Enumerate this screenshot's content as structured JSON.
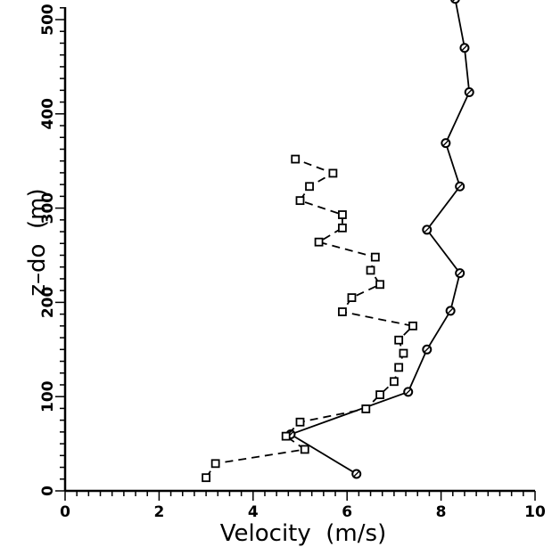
{
  "chart_data": {
    "type": "line",
    "title": "",
    "xlabel": "Velocity  (m/s)",
    "ylabel": "z–do  (m)",
    "xlim": [
      0,
      10
    ],
    "ylim": [
      0,
      500
    ],
    "x_ticks": [
      0,
      2,
      4,
      6,
      8,
      10
    ],
    "x_tick_labels": [
      "0",
      "2",
      "4",
      "6",
      "8",
      "10"
    ],
    "y_ticks": [
      0,
      100,
      200,
      300,
      400,
      500
    ],
    "y_tick_labels": [
      "0",
      "100",
      "200",
      "300",
      "400",
      "500"
    ],
    "grid": false,
    "legend": "none",
    "series": [
      {
        "marker": "circle",
        "line_style": "solid",
        "color": "#000000",
        "points": [
          [
            6.2,
            18
          ],
          [
            4.8,
            60
          ],
          [
            7.3,
            105
          ],
          [
            7.7,
            150
          ],
          [
            8.2,
            191
          ],
          [
            8.4,
            231
          ],
          [
            7.7,
            277
          ],
          [
            8.4,
            323
          ],
          [
            8.1,
            369
          ],
          [
            8.6,
            423
          ],
          [
            8.5,
            470
          ],
          [
            8.3,
            522
          ]
        ]
      },
      {
        "marker": "square",
        "line_style": "dashed",
        "color": "#000000",
        "points": [
          [
            3.0,
            14
          ],
          [
            3.2,
            29
          ],
          [
            5.1,
            44
          ],
          [
            4.7,
            58
          ],
          [
            5.0,
            73
          ],
          [
            6.4,
            87
          ],
          [
            6.7,
            102
          ],
          [
            7.0,
            116
          ],
          [
            7.1,
            131
          ],
          [
            7.2,
            146
          ],
          [
            7.1,
            160
          ],
          [
            7.4,
            175
          ],
          [
            5.9,
            190
          ],
          [
            6.1,
            205
          ],
          [
            6.7,
            219
          ],
          [
            6.5,
            234
          ],
          [
            6.6,
            248
          ],
          [
            5.4,
            264
          ],
          [
            5.9,
            279
          ],
          [
            5.9,
            293
          ],
          [
            5.0,
            308
          ],
          [
            5.2,
            323
          ],
          [
            5.7,
            337
          ],
          [
            4.9,
            352
          ]
        ]
      }
    ]
  }
}
